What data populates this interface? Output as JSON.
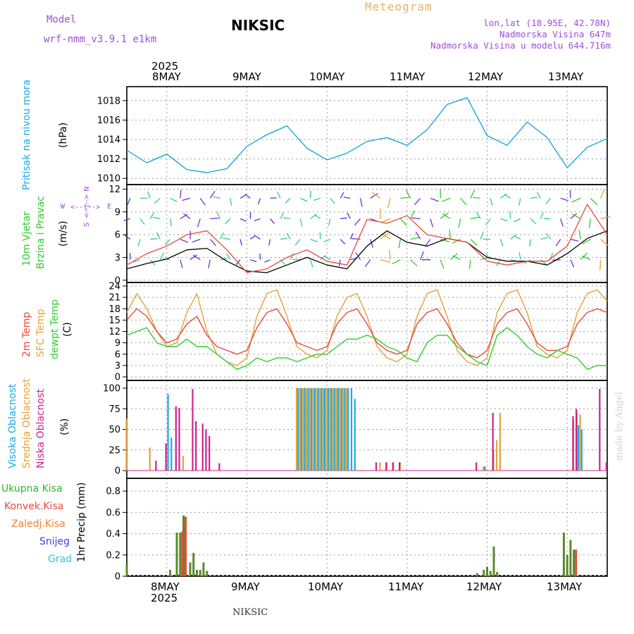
{
  "header": {
    "model_label": "Model",
    "model_name": "wrf-nmm_v3.9.1  e1km",
    "station": "NIKSIC",
    "meteogram": "Meteogram",
    "lonlat": "lon,lat (18.95E, 42.78N)",
    "altitude": "Nadmorska Visina 647m",
    "model_altitude": "Nadmorska Visina u modelu 644.716m",
    "year": "2025",
    "footer_station": "NIKSIC",
    "credit": "made by Angel"
  },
  "dates": [
    "8MAY",
    "9MAY",
    "10MAY",
    "11MAY",
    "12MAY",
    "13MAY"
  ],
  "colors": {
    "pressure": "#1ea8e0",
    "wind_speed": "#000000",
    "gust": "#e84a3a",
    "temp2m": "#e84a3a",
    "sfc_temp": "#e2a23a",
    "dewpoint": "#2ecc2e",
    "cloud_high": "#1ea8e0",
    "cloud_mid": "#e2a23a",
    "cloud_low": "#c8238c",
    "precip_total": "#2eb82e",
    "precip_conv": "#e84a3a",
    "precip_frozen": "#f08030",
    "snow": "#4040e0",
    "hail": "#2ec8c8"
  },
  "labels": {
    "pressure": "Pritisak na nivou mora",
    "pressure_unit": "(hPa)",
    "wind1": "10m Vjetar",
    "wind2": "Brzina i Pravac",
    "wind_unit": "(m/s)",
    "compass_n": "N",
    "compass_s": "S",
    "compass_w": "W",
    "compass_e": "E",
    "temp1": "2m Temp",
    "temp2": "SFC Temp",
    "temp3": "dewpt Temp",
    "temp_unit": "(C)",
    "cloud1": "Visoka Oblacnost",
    "cloud2": "Srednja Oblacnost",
    "cloud3": "Niska Oblacnost",
    "cloud_unit": "(%)",
    "precip_unit": "1hr Precip (mm)",
    "rain_total": "Ukupna Kisa",
    "rain_conv": "Konvek.Kisa",
    "rain_frozen": "Zaledj.Kisa",
    "snow": "Snijeg",
    "hail": "Grad"
  },
  "chart_data": [
    {
      "type": "line",
      "name": "pressure",
      "y_ticks": [
        "1010",
        "1012",
        "1014",
        "1016",
        "1018"
      ],
      "ylim": [
        1009.8,
        1019.0
      ],
      "x_hours": [
        0,
        6,
        12,
        18,
        24,
        30,
        36,
        42,
        48,
        54,
        60,
        66,
        72,
        78,
        84,
        90,
        96,
        102,
        108,
        114,
        120,
        126,
        132,
        138,
        144
      ],
      "values": [
        1012.9,
        1011.6,
        1012.5,
        1010.9,
        1010.6,
        1011.0,
        1013.3,
        1014.5,
        1015.4,
        1013.1,
        1011.9,
        1012.6,
        1013.8,
        1014.2,
        1013.4,
        1015.0,
        1017.6,
        1018.3,
        1014.4,
        1013.4,
        1015.8,
        1014.2,
        1011.1,
        1013.2,
        1014.1
      ]
    },
    {
      "type": "line",
      "name": "wind",
      "y_ticks": [
        "0",
        "3",
        "6",
        "9",
        "12"
      ],
      "ylim": [
        -0.3,
        12.6
      ],
      "x_hours": [
        0,
        6,
        12,
        18,
        24,
        30,
        36,
        42,
        48,
        54,
        60,
        66,
        72,
        78,
        84,
        90,
        96,
        102,
        108,
        114,
        120,
        126,
        132,
        138,
        144
      ],
      "speed": [
        1.5,
        2.2,
        2.8,
        4.0,
        4.2,
        2.5,
        1.2,
        1.0,
        2.0,
        3.0,
        2.0,
        1.5,
        4.5,
        6.5,
        5.0,
        4.5,
        5.5,
        5.0,
        3.0,
        2.5,
        2.5,
        2.0,
        3.5,
        5.5,
        6.5
      ],
      "gust": [
        2.0,
        3.5,
        4.5,
        6.0,
        6.5,
        4.0,
        1.0,
        1.5,
        3.0,
        4.0,
        2.5,
        2.0,
        8.0,
        7.5,
        8.5,
        6.0,
        5.5,
        5.0,
        2.5,
        2.0,
        2.5,
        2.5,
        4.5,
        10.0,
        6.0
      ]
    },
    {
      "type": "line",
      "name": "temperature",
      "y_ticks": [
        "0",
        "3",
        "6",
        "9",
        "12",
        "15",
        "18",
        "21",
        "24"
      ],
      "ylim": [
        0,
        24
      ],
      "x_hours": [
        0,
        3,
        6,
        9,
        12,
        15,
        18,
        21,
        24,
        27,
        30,
        33,
        36,
        39,
        42,
        45,
        48,
        51,
        54,
        57,
        60,
        63,
        66,
        69,
        72,
        75,
        78,
        81,
        84,
        87,
        90,
        93,
        96,
        99,
        102,
        105,
        108,
        111,
        114,
        117,
        120,
        123,
        126,
        129,
        132,
        135,
        138,
        141,
        144
      ],
      "temp_2m": [
        15,
        18,
        16,
        12,
        9,
        10,
        14,
        16,
        11,
        8,
        7,
        6,
        7,
        13,
        17,
        18,
        14,
        9,
        8,
        7,
        8,
        14,
        17,
        18,
        14,
        9,
        7,
        6,
        7,
        14,
        17,
        18,
        14,
        9,
        6,
        5,
        7,
        14,
        17,
        18,
        14,
        9,
        7,
        7,
        8,
        14,
        17,
        18,
        17
      ],
      "sfc_temp": [
        17,
        22,
        18,
        12,
        8,
        9,
        17,
        22,
        12,
        6,
        4,
        3,
        5,
        16,
        22,
        23,
        16,
        8,
        6,
        5,
        7,
        16,
        21,
        22,
        16,
        8,
        5,
        4,
        6,
        16,
        22,
        23,
        16,
        7,
        4,
        3,
        5,
        17,
        22,
        23,
        17,
        8,
        6,
        5,
        7,
        17,
        22,
        23,
        20
      ],
      "dewpoint": [
        11,
        12,
        13,
        9,
        8,
        8,
        10,
        8,
        8,
        6,
        4,
        2,
        3,
        5,
        4,
        5,
        5,
        4,
        5,
        6,
        6,
        8,
        10,
        10,
        11,
        10,
        8,
        7,
        5,
        4,
        9,
        11,
        11,
        8,
        6,
        4,
        3,
        11,
        13,
        11,
        8,
        6,
        5,
        7,
        6,
        5,
        2,
        3,
        3
      ]
    },
    {
      "type": "bar",
      "name": "cloud",
      "y_ticks": [
        "0",
        "25",
        "50",
        "75",
        "100"
      ],
      "ylim": [
        0,
        100
      ],
      "high": [
        [
          12,
          93
        ],
        [
          13,
          40
        ],
        [
          51,
          100
        ],
        [
          52,
          100
        ],
        [
          53,
          100
        ],
        [
          54,
          100
        ],
        [
          55,
          100
        ],
        [
          56,
          100
        ],
        [
          57,
          100
        ],
        [
          58,
          100
        ],
        [
          59,
          100
        ],
        [
          60,
          100
        ],
        [
          61,
          100
        ],
        [
          62,
          100
        ],
        [
          63,
          100
        ],
        [
          64,
          100
        ],
        [
          65,
          100
        ],
        [
          66,
          100
        ],
        [
          67,
          100
        ],
        [
          68,
          87
        ],
        [
          107,
          5
        ],
        [
          135,
          55
        ],
        [
          136,
          50
        ]
      ],
      "mid": [
        [
          0,
          63
        ],
        [
          7,
          28
        ],
        [
          17,
          18
        ],
        [
          51,
          100
        ],
        [
          52,
          100
        ],
        [
          53,
          100
        ],
        [
          54,
          100
        ],
        [
          55,
          100
        ],
        [
          56,
          100
        ],
        [
          57,
          100
        ],
        [
          58,
          100
        ],
        [
          59,
          100
        ],
        [
          60,
          100
        ],
        [
          61,
          100
        ],
        [
          62,
          100
        ],
        [
          63,
          100
        ],
        [
          64,
          100
        ],
        [
          65,
          100
        ],
        [
          66,
          100
        ],
        [
          107,
          5
        ],
        [
          110,
          25
        ],
        [
          111,
          37
        ],
        [
          112,
          70
        ],
        [
          134,
          62
        ],
        [
          135,
          70
        ],
        [
          136,
          68
        ],
        [
          76,
          10
        ],
        [
          78,
          10
        ],
        [
          80,
          10
        ],
        [
          82,
          10
        ]
      ],
      "low": [
        [
          8,
          12
        ],
        [
          11,
          33
        ],
        [
          14,
          78
        ],
        [
          15,
          76
        ],
        [
          19,
          99
        ],
        [
          20,
          60
        ],
        [
          22,
          57
        ],
        [
          23,
          50
        ],
        [
          24,
          42
        ],
        [
          27,
          9
        ],
        [
          74,
          10
        ],
        [
          77,
          10
        ],
        [
          79,
          10
        ],
        [
          81,
          10
        ],
        [
          104,
          10
        ],
        [
          109,
          70
        ],
        [
          133,
          66
        ],
        [
          134,
          75
        ],
        [
          141,
          99
        ],
        [
          143,
          10
        ]
      ]
    },
    {
      "type": "bar",
      "name": "precipitation",
      "y_ticks": [
        "0",
        "0.2",
        "0.4",
        "0.6",
        "0.8"
      ],
      "ylim": [
        0,
        0.92
      ],
      "total": [
        [
          0,
          0.11
        ],
        [
          6,
          0.01
        ],
        [
          11,
          0.01
        ],
        [
          13,
          0.06
        ],
        [
          15,
          0.41
        ],
        [
          16,
          0.41
        ],
        [
          17,
          0.57
        ],
        [
          19,
          0.13
        ],
        [
          20,
          0.22
        ],
        [
          21,
          0.06
        ],
        [
          22,
          0.06
        ],
        [
          23,
          0.13
        ],
        [
          24,
          0.05
        ],
        [
          105,
          0.03
        ],
        [
          107,
          0.06
        ],
        [
          108,
          0.09
        ],
        [
          109,
          0.05
        ],
        [
          110,
          0.28
        ],
        [
          111,
          0.04
        ],
        [
          131,
          0.41
        ],
        [
          132,
          0.2
        ],
        [
          133,
          0.34
        ],
        [
          134,
          0.25
        ]
      ],
      "convective": [
        [
          16,
          0.42
        ],
        [
          17,
          0.56
        ],
        [
          134,
          0.25
        ]
      ]
    }
  ]
}
